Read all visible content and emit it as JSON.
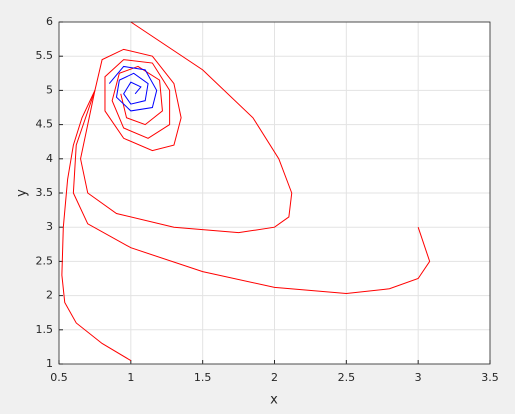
{
  "chart_data": {
    "type": "line",
    "xlabel": "x",
    "ylabel": "y",
    "xlim": [
      0.5,
      3.5
    ],
    "ylim": [
      1,
      6
    ],
    "xticks": [
      0.5,
      1,
      1.5,
      2,
      2.5,
      3,
      3.5
    ],
    "yticks": [
      1,
      1.5,
      2,
      2.5,
      3,
      3.5,
      4,
      4.5,
      5,
      5.5,
      6
    ],
    "grid": true,
    "series": [
      {
        "color": "#ff0000",
        "x": [
          1.0,
          0.8,
          0.62,
          0.54,
          0.52,
          0.53,
          0.56,
          0.6,
          0.66,
          0.75
        ],
        "y": [
          1.05,
          1.3,
          1.6,
          1.9,
          2.3,
          3.0,
          3.7,
          4.2,
          4.6,
          5.0
        ]
      },
      {
        "color": "#ff0000",
        "x": [
          3.0,
          3.08,
          3.0,
          2.8,
          2.5,
          2.0,
          1.5,
          1.0,
          0.7,
          0.6,
          0.62,
          0.75
        ],
        "y": [
          3.0,
          2.5,
          2.25,
          2.1,
          2.03,
          2.12,
          2.35,
          2.7,
          3.05,
          3.5,
          4.2,
          5.0
        ]
      },
      {
        "color": "#ff0000",
        "x": [
          1.0,
          1.5,
          1.85,
          2.03,
          2.12,
          2.1,
          2.0,
          1.75,
          1.3,
          0.9,
          0.7,
          0.65,
          0.7,
          0.75
        ],
        "y": [
          6.0,
          5.3,
          4.6,
          4.0,
          3.5,
          3.15,
          3.0,
          2.92,
          3.0,
          3.2,
          3.5,
          4.0,
          4.5,
          5.0
        ]
      },
      {
        "color": "#ff0000",
        "x": [
          0.75,
          0.8,
          0.95,
          1.15,
          1.3,
          1.35,
          1.3,
          1.15,
          0.95,
          0.82,
          0.82,
          0.95,
          1.15,
          1.27,
          1.27,
          1.12,
          0.95,
          0.87,
          0.92,
          1.05,
          1.2,
          1.22,
          1.1,
          0.97,
          0.93
        ],
        "y": [
          5.0,
          5.45,
          5.6,
          5.5,
          5.1,
          4.6,
          4.2,
          4.12,
          4.3,
          4.7,
          5.2,
          5.45,
          5.4,
          5.0,
          4.5,
          4.3,
          4.45,
          4.85,
          5.25,
          5.35,
          5.15,
          4.7,
          4.5,
          4.6,
          4.95
        ]
      },
      {
        "color": "#0000ff",
        "x": [
          0.85,
          0.95,
          1.1,
          1.18,
          1.15,
          1.0,
          0.9,
          0.92,
          1.02,
          1.12,
          1.1,
          1.0,
          0.95,
          1.0,
          1.07,
          1.03
        ],
        "y": [
          5.1,
          5.35,
          5.3,
          5.0,
          4.75,
          4.7,
          4.9,
          5.15,
          5.25,
          5.1,
          4.85,
          4.8,
          4.95,
          5.12,
          5.05,
          4.95
        ]
      }
    ]
  }
}
